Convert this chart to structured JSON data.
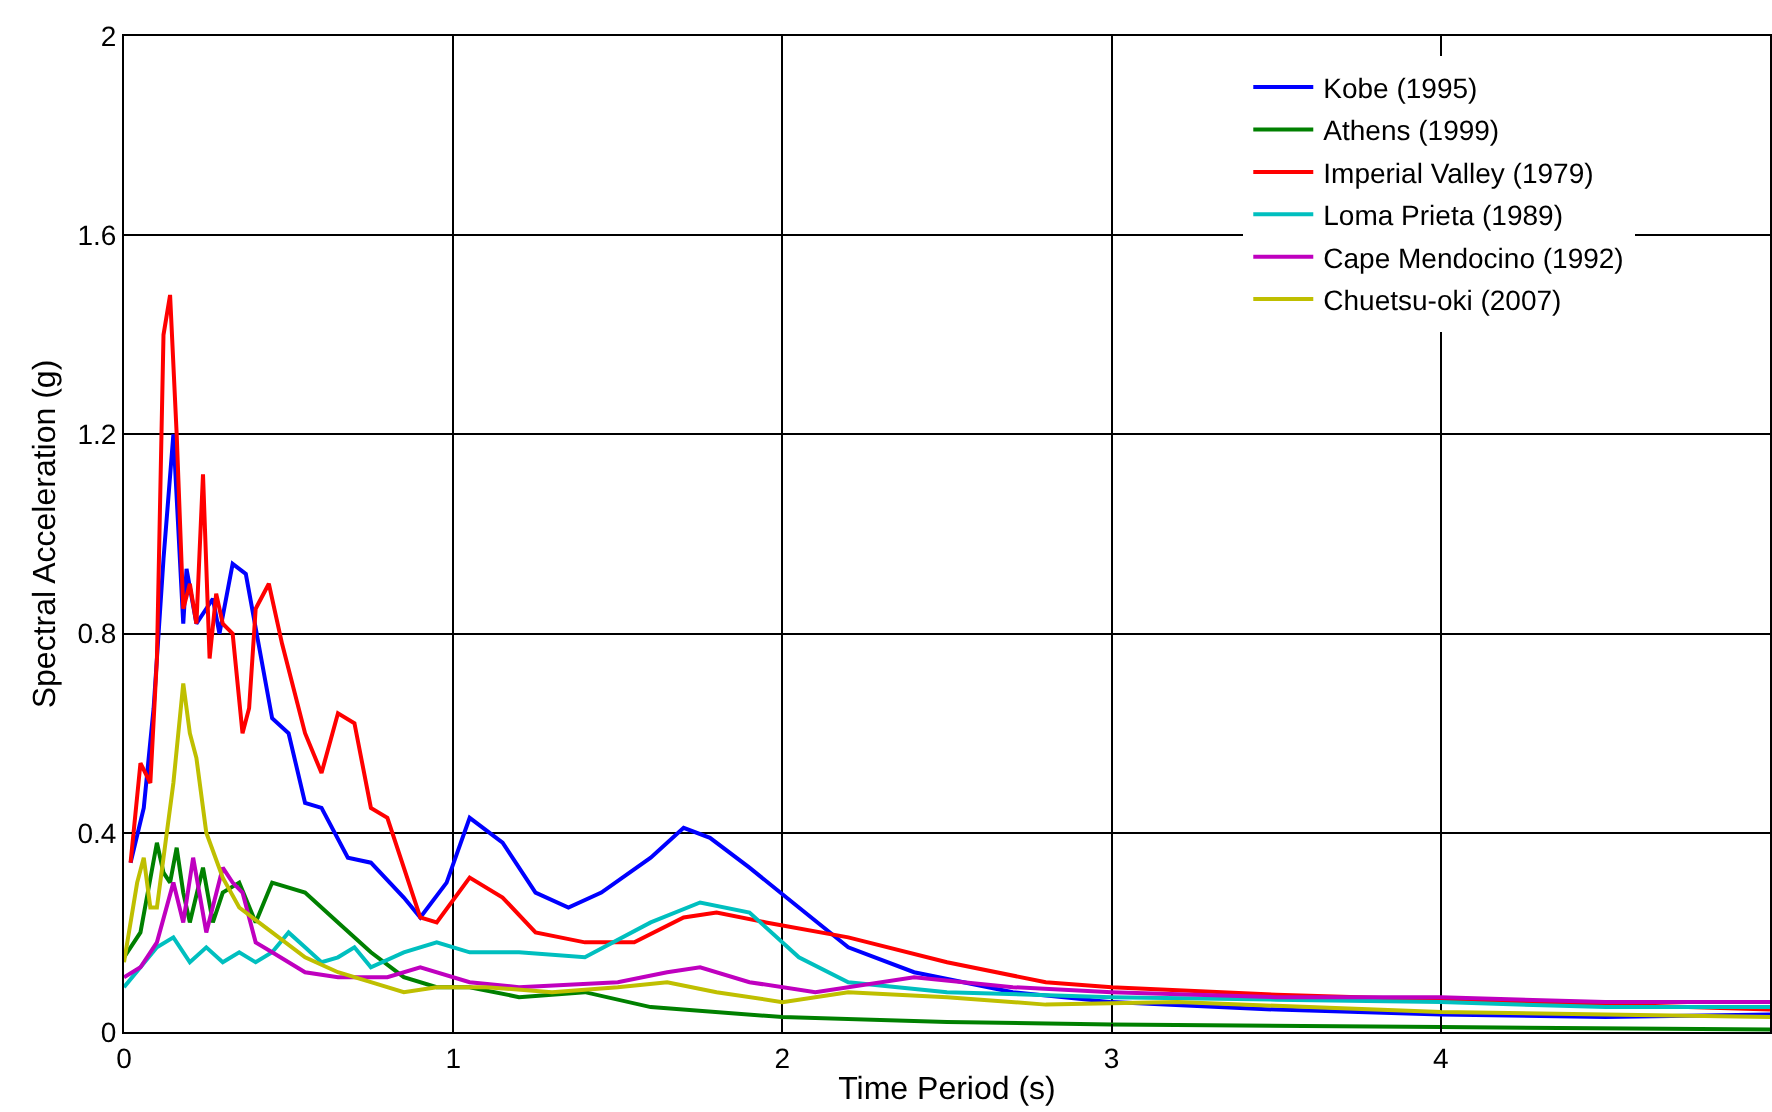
{
  "chart_data": {
    "type": "line",
    "xlabel": "Time Period (s)",
    "ylabel": "Spectral Acceleration (g)",
    "xlim": [
      0,
      5
    ],
    "ylim": [
      0,
      2
    ],
    "xticks": [
      0,
      1,
      2,
      3,
      4
    ],
    "yticks": [
      0,
      0.4,
      0.8,
      1.2,
      1.6,
      2
    ],
    "grid": true,
    "legend": "top right",
    "marker": "none",
    "line_style": "solid",
    "series": [
      {
        "name": "Kobe (1995)",
        "color": "#0000ff",
        "x": [
          0.02,
          0.06,
          0.09,
          0.12,
          0.15,
          0.18,
          0.19,
          0.22,
          0.27,
          0.29,
          0.33,
          0.37,
          0.45,
          0.5,
          0.55,
          0.6,
          0.68,
          0.75,
          0.85,
          0.9,
          0.98,
          1.05,
          1.15,
          1.25,
          1.35,
          1.45,
          1.6,
          1.7,
          1.78,
          1.9,
          2.05,
          2.2,
          2.4,
          2.7,
          3,
          3.5,
          4,
          4.5,
          5
        ],
        "values": [
          0.34,
          0.45,
          0.65,
          0.95,
          1.2,
          0.82,
          0.93,
          0.82,
          0.87,
          0.8,
          0.94,
          0.92,
          0.63,
          0.6,
          0.46,
          0.45,
          0.35,
          0.34,
          0.27,
          0.23,
          0.3,
          0.43,
          0.38,
          0.28,
          0.25,
          0.28,
          0.35,
          0.41,
          0.39,
          0.33,
          0.25,
          0.17,
          0.12,
          0.08,
          0.06,
          0.045,
          0.035,
          0.03,
          0.035
        ]
      },
      {
        "name": "Athens (1999)",
        "color": "#008000",
        "x": [
          0,
          0.05,
          0.1,
          0.12,
          0.14,
          0.16,
          0.18,
          0.2,
          0.24,
          0.27,
          0.3,
          0.35,
          0.4,
          0.45,
          0.55,
          0.65,
          0.75,
          0.85,
          0.95,
          1.05,
          1.2,
          1.4,
          1.6,
          2,
          2.5,
          3,
          4,
          5
        ],
        "values": [
          0.15,
          0.2,
          0.38,
          0.32,
          0.3,
          0.37,
          0.28,
          0.22,
          0.33,
          0.22,
          0.28,
          0.3,
          0.22,
          0.3,
          0.28,
          0.22,
          0.16,
          0.11,
          0.09,
          0.09,
          0.07,
          0.08,
          0.05,
          0.03,
          0.02,
          0.015,
          0.01,
          0.005
        ]
      },
      {
        "name": "Imperial Valley (1979)",
        "color": "#ff0000",
        "x": [
          0.02,
          0.05,
          0.08,
          0.1,
          0.12,
          0.14,
          0.16,
          0.18,
          0.2,
          0.22,
          0.24,
          0.26,
          0.28,
          0.3,
          0.33,
          0.36,
          0.38,
          0.4,
          0.44,
          0.48,
          0.55,
          0.6,
          0.65,
          0.7,
          0.75,
          0.8,
          0.9,
          0.95,
          1.05,
          1.15,
          1.25,
          1.4,
          1.55,
          1.7,
          1.8,
          1.95,
          2.2,
          2.5,
          2.8,
          3,
          3.5,
          4,
          4.5,
          5
        ],
        "values": [
          0.34,
          0.54,
          0.5,
          0.75,
          1.4,
          1.48,
          1.2,
          0.85,
          0.9,
          0.82,
          1.12,
          0.75,
          0.88,
          0.82,
          0.8,
          0.6,
          0.65,
          0.85,
          0.9,
          0.78,
          0.6,
          0.52,
          0.64,
          0.62,
          0.45,
          0.43,
          0.23,
          0.22,
          0.31,
          0.27,
          0.2,
          0.18,
          0.18,
          0.23,
          0.24,
          0.22,
          0.19,
          0.14,
          0.1,
          0.09,
          0.075,
          0.065,
          0.055,
          0.045
        ]
      },
      {
        "name": "Loma Prieta (1989)",
        "color": "#00bfbf",
        "x": [
          0,
          0.05,
          0.1,
          0.15,
          0.2,
          0.25,
          0.3,
          0.35,
          0.4,
          0.45,
          0.5,
          0.55,
          0.6,
          0.65,
          0.7,
          0.75,
          0.85,
          0.95,
          1.05,
          1.2,
          1.4,
          1.6,
          1.75,
          1.9,
          2.05,
          2.2,
          2.5,
          3,
          3.5,
          4,
          4.5,
          5
        ],
        "values": [
          0.09,
          0.13,
          0.17,
          0.19,
          0.14,
          0.17,
          0.14,
          0.16,
          0.14,
          0.16,
          0.2,
          0.17,
          0.14,
          0.15,
          0.17,
          0.13,
          0.16,
          0.18,
          0.16,
          0.16,
          0.15,
          0.22,
          0.26,
          0.24,
          0.15,
          0.1,
          0.08,
          0.07,
          0.065,
          0.06,
          0.05,
          0.05
        ]
      },
      {
        "name": "Cape Mendocino (1992)",
        "color": "#bf00bf",
        "x": [
          0,
          0.05,
          0.1,
          0.15,
          0.18,
          0.21,
          0.25,
          0.3,
          0.33,
          0.36,
          0.4,
          0.45,
          0.55,
          0.65,
          0.8,
          0.9,
          1.05,
          1.2,
          1.5,
          1.65,
          1.75,
          1.9,
          2.1,
          2.4,
          2.7,
          3,
          3.5,
          4,
          4.5,
          5
        ],
        "values": [
          0.11,
          0.13,
          0.18,
          0.3,
          0.22,
          0.35,
          0.2,
          0.33,
          0.3,
          0.28,
          0.18,
          0.16,
          0.12,
          0.11,
          0.11,
          0.13,
          0.1,
          0.09,
          0.1,
          0.12,
          0.13,
          0.1,
          0.08,
          0.11,
          0.09,
          0.08,
          0.07,
          0.07,
          0.06,
          0.06
        ]
      },
      {
        "name": "Chuetsu-oki (2007)",
        "color": "#bfbf00",
        "x": [
          0,
          0.04,
          0.06,
          0.08,
          0.1,
          0.12,
          0.15,
          0.18,
          0.2,
          0.22,
          0.25,
          0.3,
          0.35,
          0.45,
          0.55,
          0.65,
          0.75,
          0.85,
          0.95,
          1.1,
          1.3,
          1.5,
          1.65,
          1.8,
          2,
          2.2,
          2.5,
          2.8,
          3.2,
          3.6,
          4,
          4.5,
          5
        ],
        "values": [
          0.14,
          0.3,
          0.35,
          0.25,
          0.25,
          0.35,
          0.5,
          0.7,
          0.6,
          0.55,
          0.4,
          0.31,
          0.25,
          0.2,
          0.15,
          0.12,
          0.1,
          0.08,
          0.09,
          0.09,
          0.08,
          0.09,
          0.1,
          0.08,
          0.06,
          0.08,
          0.07,
          0.055,
          0.06,
          0.05,
          0.04,
          0.035,
          0.03
        ]
      }
    ]
  }
}
